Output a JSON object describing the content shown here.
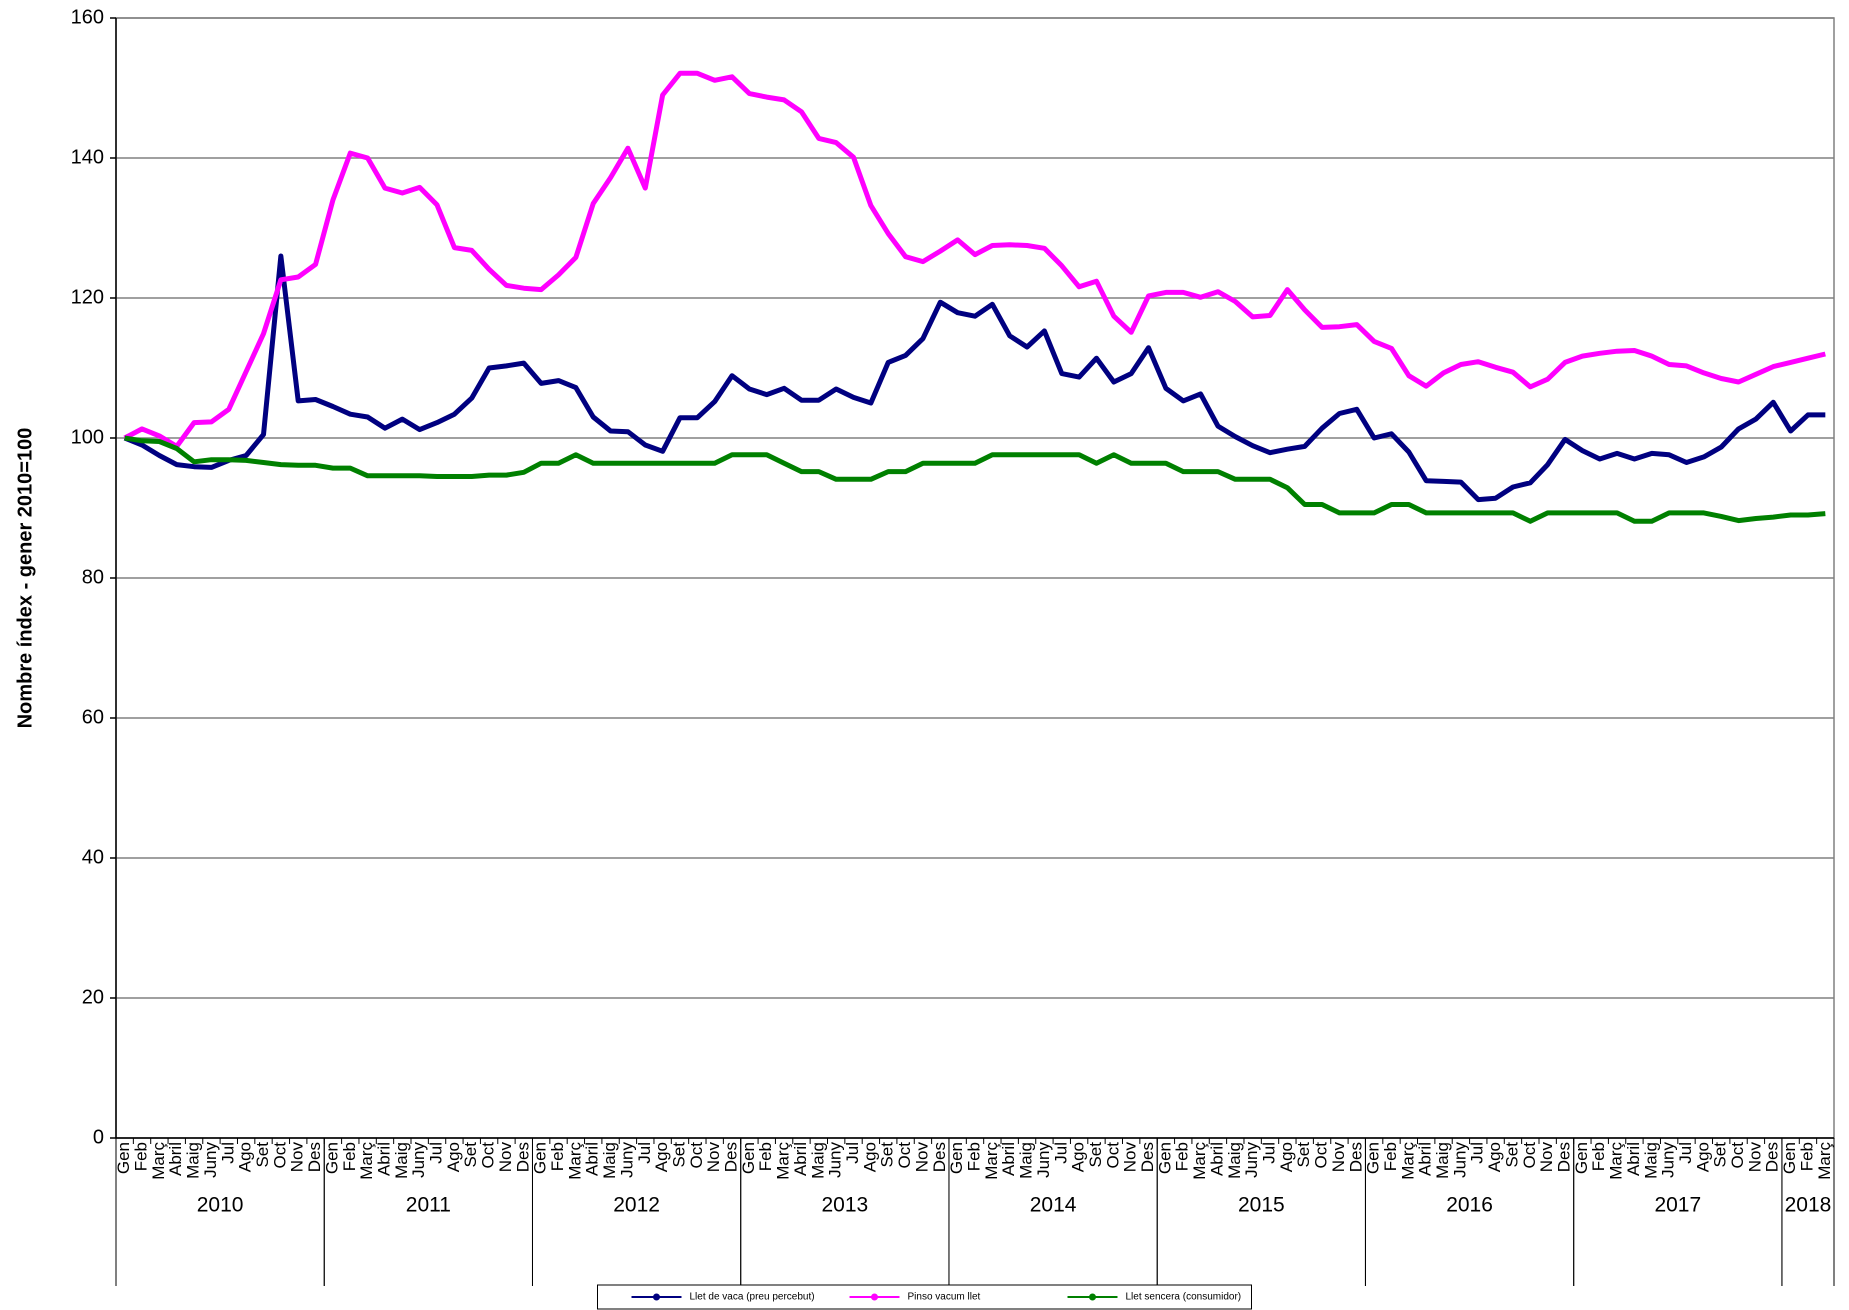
{
  "chart_data": {
    "type": "line",
    "y_label": "Nombre índex - gener 2010=100",
    "categories": [
      "Gen",
      "Feb",
      "Març",
      "Abril",
      "Maig",
      "Juny",
      "Jul",
      "Ago",
      "Set",
      "Oct",
      "Nov",
      "Des",
      "Gen",
      "Feb",
      "Març",
      "Abril",
      "Maig",
      "Juny",
      "Jul",
      "Ago",
      "Set",
      "Oct",
      "Nov",
      "Des",
      "Gen",
      "Feb",
      "Març",
      "Abril",
      "Maig",
      "Juny",
      "Jul",
      "Ago",
      "Set",
      "Oct",
      "Nov",
      "Des",
      "Gen",
      "Feb",
      "Març",
      "Abril",
      "Maig",
      "Juny",
      "Jul",
      "Ago",
      "Set",
      "Oct",
      "Nov",
      "Des",
      "Gen",
      "Feb",
      "Març",
      "Abril",
      "Maig",
      "Juny",
      "Jul",
      "Ago",
      "Set",
      "Oct",
      "Nov",
      "Des",
      "Gen",
      "Feb",
      "Març",
      "Abril",
      "Maig",
      "Juny",
      "Jul",
      "Ago",
      "Set",
      "Oct",
      "Nov",
      "Des",
      "Gen",
      "Feb",
      "Març",
      "Abril",
      "Maig",
      "Juny",
      "Jul",
      "Ago",
      "Set",
      "Oct",
      "Nov",
      "Des",
      "Gen",
      "Feb",
      "Març",
      "Abril",
      "Maig",
      "Juny",
      "Jul",
      "Ago",
      "Set",
      "Oct",
      "Nov",
      "Des",
      "Gen",
      "Feb",
      "Març"
    ],
    "years": [
      "2010",
      "2011",
      "2012",
      "2013",
      "2014",
      "2015",
      "2016",
      "2017",
      "2018"
    ],
    "series": [
      {
        "name": "Llet de vaca (preu percebut)",
        "color": "#000080",
        "values": [
          100,
          99,
          97.5,
          96.2,
          95.9,
          95.8,
          96.8,
          97.5,
          100.5,
          126,
          105.3,
          105.5,
          104.5,
          103.4,
          103,
          101.4,
          102.7,
          101.2,
          102.2,
          103.4,
          105.7,
          110,
          110.3,
          110.7,
          107.8,
          108.2,
          107.2,
          103,
          101,
          100.9,
          99,
          98.1,
          102.9,
          102.9,
          105.2,
          108.9,
          107,
          106.2,
          107.1,
          105.4,
          105.4,
          107,
          105.8,
          105,
          110.8,
          111.8,
          114.2,
          119.4,
          117.9,
          117.4,
          119.1,
          114.6,
          113,
          115.3,
          109.2,
          108.7,
          111.4,
          108,
          109.2,
          112.9,
          107.1,
          105.3,
          106.3,
          101.7,
          100.2,
          98.9,
          97.9,
          98.4,
          98.8,
          101.4,
          103.5,
          104.1,
          100,
          100.6,
          98,
          93.9,
          93.8,
          93.7,
          91.2,
          91.4,
          93,
          93.6,
          96.2,
          99.8,
          98.2,
          97,
          97.8,
          97,
          97.8,
          97.6,
          96.5,
          97.3,
          98.7,
          101.3,
          102.7,
          105.1,
          101,
          103.3,
          103.3
        ]
      },
      {
        "name": "Pinso vacum llet",
        "color": "#ff00ff",
        "values": [
          100,
          101.3,
          100.3,
          98.8,
          102.2,
          102.3,
          104.1,
          109.5,
          114.9,
          122.6,
          123,
          124.8,
          134,
          140.7,
          140,
          135.7,
          135,
          135.8,
          133.3,
          127.2,
          126.8,
          124.1,
          121.8,
          121.4,
          121.2,
          123.3,
          125.8,
          133.5,
          137.2,
          141.4,
          135.7,
          149,
          152.1,
          152.1,
          151.1,
          151.6,
          149.2,
          148.7,
          148.3,
          146.6,
          142.8,
          142.2,
          140.1,
          133.2,
          129.2,
          125.9,
          125.2,
          126.7,
          128.3,
          126.2,
          127.5,
          127.6,
          127.5,
          127.1,
          124.6,
          121.6,
          122.4,
          117.4,
          115.1,
          120.3,
          120.8,
          120.8,
          120.1,
          120.9,
          119.5,
          117.3,
          117.5,
          121.2,
          118.3,
          115.8,
          115.9,
          116.2,
          113.8,
          112.8,
          108.9,
          107.4,
          109.3,
          110.5,
          110.9,
          110.1,
          109.4,
          107.3,
          108.4,
          110.8,
          111.7,
          112.1,
          112.4,
          112.5,
          111.7,
          110.5,
          110.3,
          109.3,
          108.5,
          108,
          109.1,
          110.2,
          110.8,
          111.4,
          112
        ]
      },
      {
        "name": "Llet sencera (consumidor)",
        "color": "#008000",
        "values": [
          100,
          99.6,
          99.5,
          98.5,
          96.6,
          96.9,
          96.9,
          96.8,
          96.5,
          96.2,
          96.1,
          96.1,
          95.7,
          95.7,
          94.6,
          94.6,
          94.6,
          94.6,
          94.5,
          94.5,
          94.5,
          94.7,
          94.7,
          95.1,
          96.4,
          96.4,
          97.6,
          96.4,
          96.4,
          96.4,
          96.4,
          96.4,
          96.4,
          96.4,
          96.4,
          97.6,
          97.6,
          97.6,
          96.4,
          95.2,
          95.2,
          94.1,
          94.1,
          94.1,
          95.2,
          95.2,
          96.4,
          96.4,
          96.4,
          96.4,
          97.6,
          97.6,
          97.6,
          97.6,
          97.6,
          97.6,
          96.4,
          97.6,
          96.4,
          96.4,
          96.4,
          95.2,
          95.2,
          95.2,
          94.1,
          94.1,
          94.1,
          92.9,
          90.5,
          90.5,
          89.3,
          89.3,
          89.3,
          90.5,
          90.5,
          89.3,
          89.3,
          89.3,
          89.3,
          89.3,
          89.3,
          88.1,
          89.3,
          89.3,
          89.3,
          89.3,
          89.3,
          88.1,
          88.1,
          89.3,
          89.3,
          89.3,
          88.8,
          88.2,
          88.5,
          88.7,
          89,
          89,
          89.2
        ]
      }
    ],
    "ylim": [
      0,
      160
    ],
    "yticks": [
      0,
      20,
      40,
      60,
      80,
      100,
      120,
      140,
      160
    ],
    "grid": true,
    "legend": "bottom"
  }
}
